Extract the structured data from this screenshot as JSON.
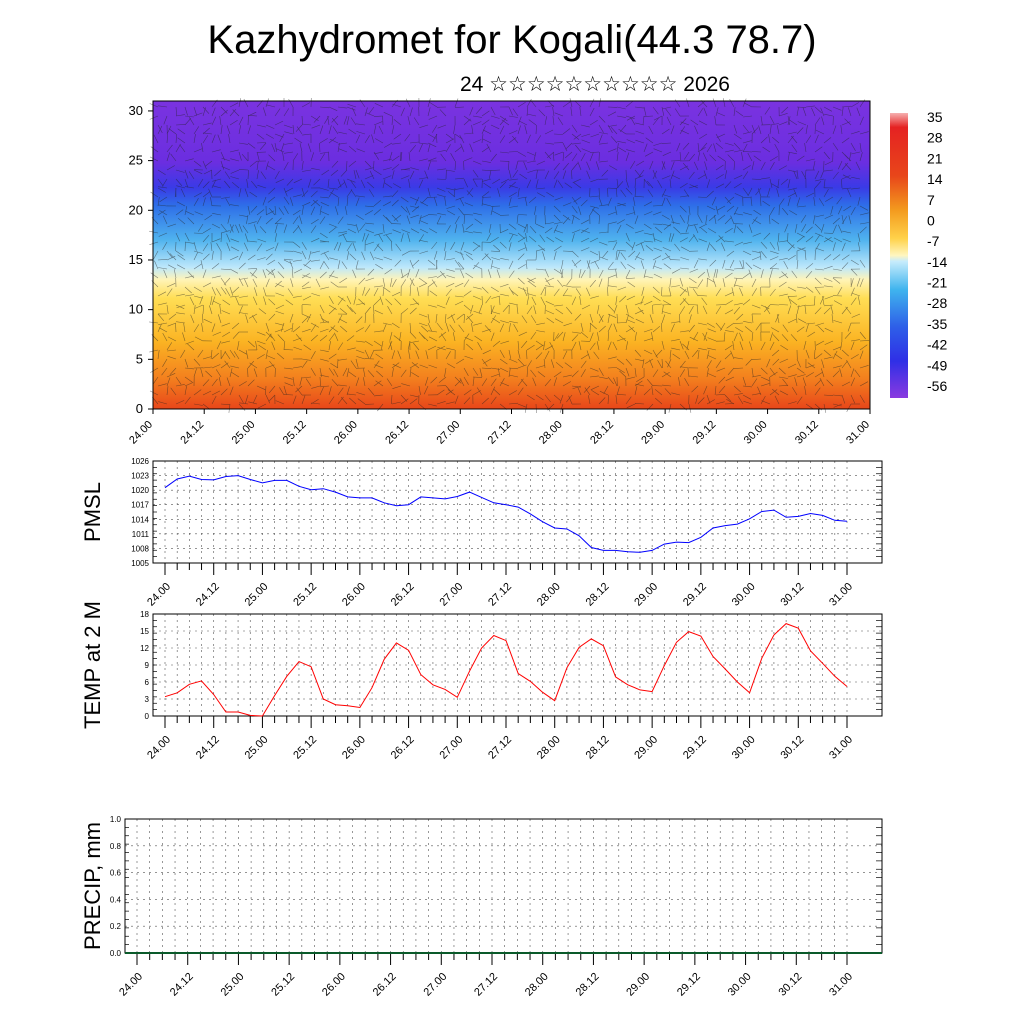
{
  "page": {
    "title": "Kazhydromet for Kogali(44.3 78.7)",
    "subtitle": "24 ☆☆☆☆☆☆☆☆☆☆ 2026"
  },
  "chart_data": [
    {
      "type": "heatmap",
      "name": "upper-air-section",
      "description_kind": "height-time temperature section with wind barbs",
      "x_tick_labels": [
        "24.00",
        "24.12",
        "25.00",
        "25.12",
        "26.00",
        "26.12",
        "27.00",
        "27.12",
        "28.00",
        "28.12",
        "29.00",
        "29.12",
        "30.00",
        "30.12",
        "31.00"
      ],
      "y_tick_labels": [
        "0",
        "5",
        "10",
        "15",
        "20",
        "25",
        "30"
      ],
      "ylim": [
        0,
        31
      ],
      "colorbar_labels": [
        "35",
        "28",
        "21",
        "14",
        "7",
        "0",
        "-7",
        "-14",
        "-21",
        "-28",
        "-35",
        "-42",
        "-49",
        "-56"
      ],
      "colors": {
        "warm": "#e8461a",
        "mid": "#ffd24a",
        "cold": "#4fa8ea",
        "coldest": "#7b2ee0"
      },
      "grid": false,
      "legend": "right"
    },
    {
      "type": "line",
      "name": "pmsl",
      "ylabel": "PMSL",
      "x_tick_labels": [
        "24.00",
        "24.12",
        "25.00",
        "25.12",
        "26.00",
        "26.12",
        "27.00",
        "27.12",
        "28.00",
        "28.12",
        "29.00",
        "29.12",
        "30.00",
        "30.12",
        "31.00"
      ],
      "y_tick_labels": [
        "1005",
        "1008",
        "1011",
        "1014",
        "1017",
        "1020",
        "1023",
        "1026"
      ],
      "ylim": [
        1005,
        1026
      ],
      "x_step_hours": 3,
      "values": [
        1020.5,
        1022.3,
        1022.9,
        1022.2,
        1022.1,
        1022.8,
        1023.0,
        1022.2,
        1021.5,
        1022.0,
        1022.0,
        1020.8,
        1020.1,
        1020.3,
        1019.6,
        1018.6,
        1018.4,
        1018.4,
        1017.4,
        1016.8,
        1017.0,
        1018.6,
        1018.4,
        1018.2,
        1018.7,
        1019.6,
        1018.5,
        1017.4,
        1017.0,
        1016.5,
        1015.1,
        1013.5,
        1012.2,
        1012.0,
        1010.6,
        1008.2,
        1007.6,
        1007.6,
        1007.3,
        1007.2,
        1007.6,
        1008.9,
        1009.3,
        1009.2,
        1010.3,
        1012.2,
        1012.7,
        1013.0,
        1014.1,
        1015.6,
        1015.9,
        1014.4,
        1014.6,
        1015.2,
        1014.8,
        1013.8,
        1013.6
      ],
      "color": "#0000ff",
      "grid": true
    },
    {
      "type": "line",
      "name": "temp2m",
      "ylabel": "TEMP at 2 M",
      "x_tick_labels": [
        "24.00",
        "24.12",
        "25.00",
        "25.12",
        "26.00",
        "26.12",
        "27.00",
        "27.12",
        "28.00",
        "28.12",
        "29.00",
        "29.12",
        "30.00",
        "30.12",
        "31.00"
      ],
      "y_tick_labels": [
        "0",
        "3",
        "6",
        "9",
        "12",
        "15",
        "18"
      ],
      "ylim": [
        0,
        18
      ],
      "x_step_hours": 3,
      "values": [
        3.4,
        4.1,
        5.6,
        6.2,
        3.8,
        0.7,
        0.7,
        0.1,
        0.0,
        3.6,
        7.0,
        9.6,
        8.7,
        3.0,
        2.0,
        1.8,
        1.5,
        5.0,
        10.0,
        12.9,
        11.6,
        7.3,
        5.5,
        4.7,
        3.3,
        7.9,
        12.0,
        14.2,
        13.3,
        7.5,
        6.1,
        4.2,
        2.7,
        8.5,
        12.1,
        13.6,
        12.4,
        6.9,
        5.5,
        4.6,
        4.3,
        8.9,
        13.0,
        14.9,
        14.1,
        10.5,
        8.3,
        6.0,
        4.1,
        10.2,
        14.3,
        16.3,
        15.5,
        11.5,
        9.3,
        7.0,
        5.2
      ],
      "color": "#ff0000",
      "grid": true
    },
    {
      "type": "bar",
      "name": "precip",
      "ylabel": "PRECIP, mm",
      "x_tick_labels": [
        "24.00",
        "24.12",
        "25.00",
        "25.12",
        "26.00",
        "26.12",
        "27.00",
        "27.12",
        "28.00",
        "28.12",
        "29.00",
        "29.12",
        "30.00",
        "30.12",
        "31.00"
      ],
      "y_tick_labels": [
        "0.0",
        "0.2",
        "0.4",
        "0.6",
        "0.8",
        "1.0"
      ],
      "ylim": [
        0,
        1
      ],
      "values": [],
      "grid": true
    }
  ]
}
